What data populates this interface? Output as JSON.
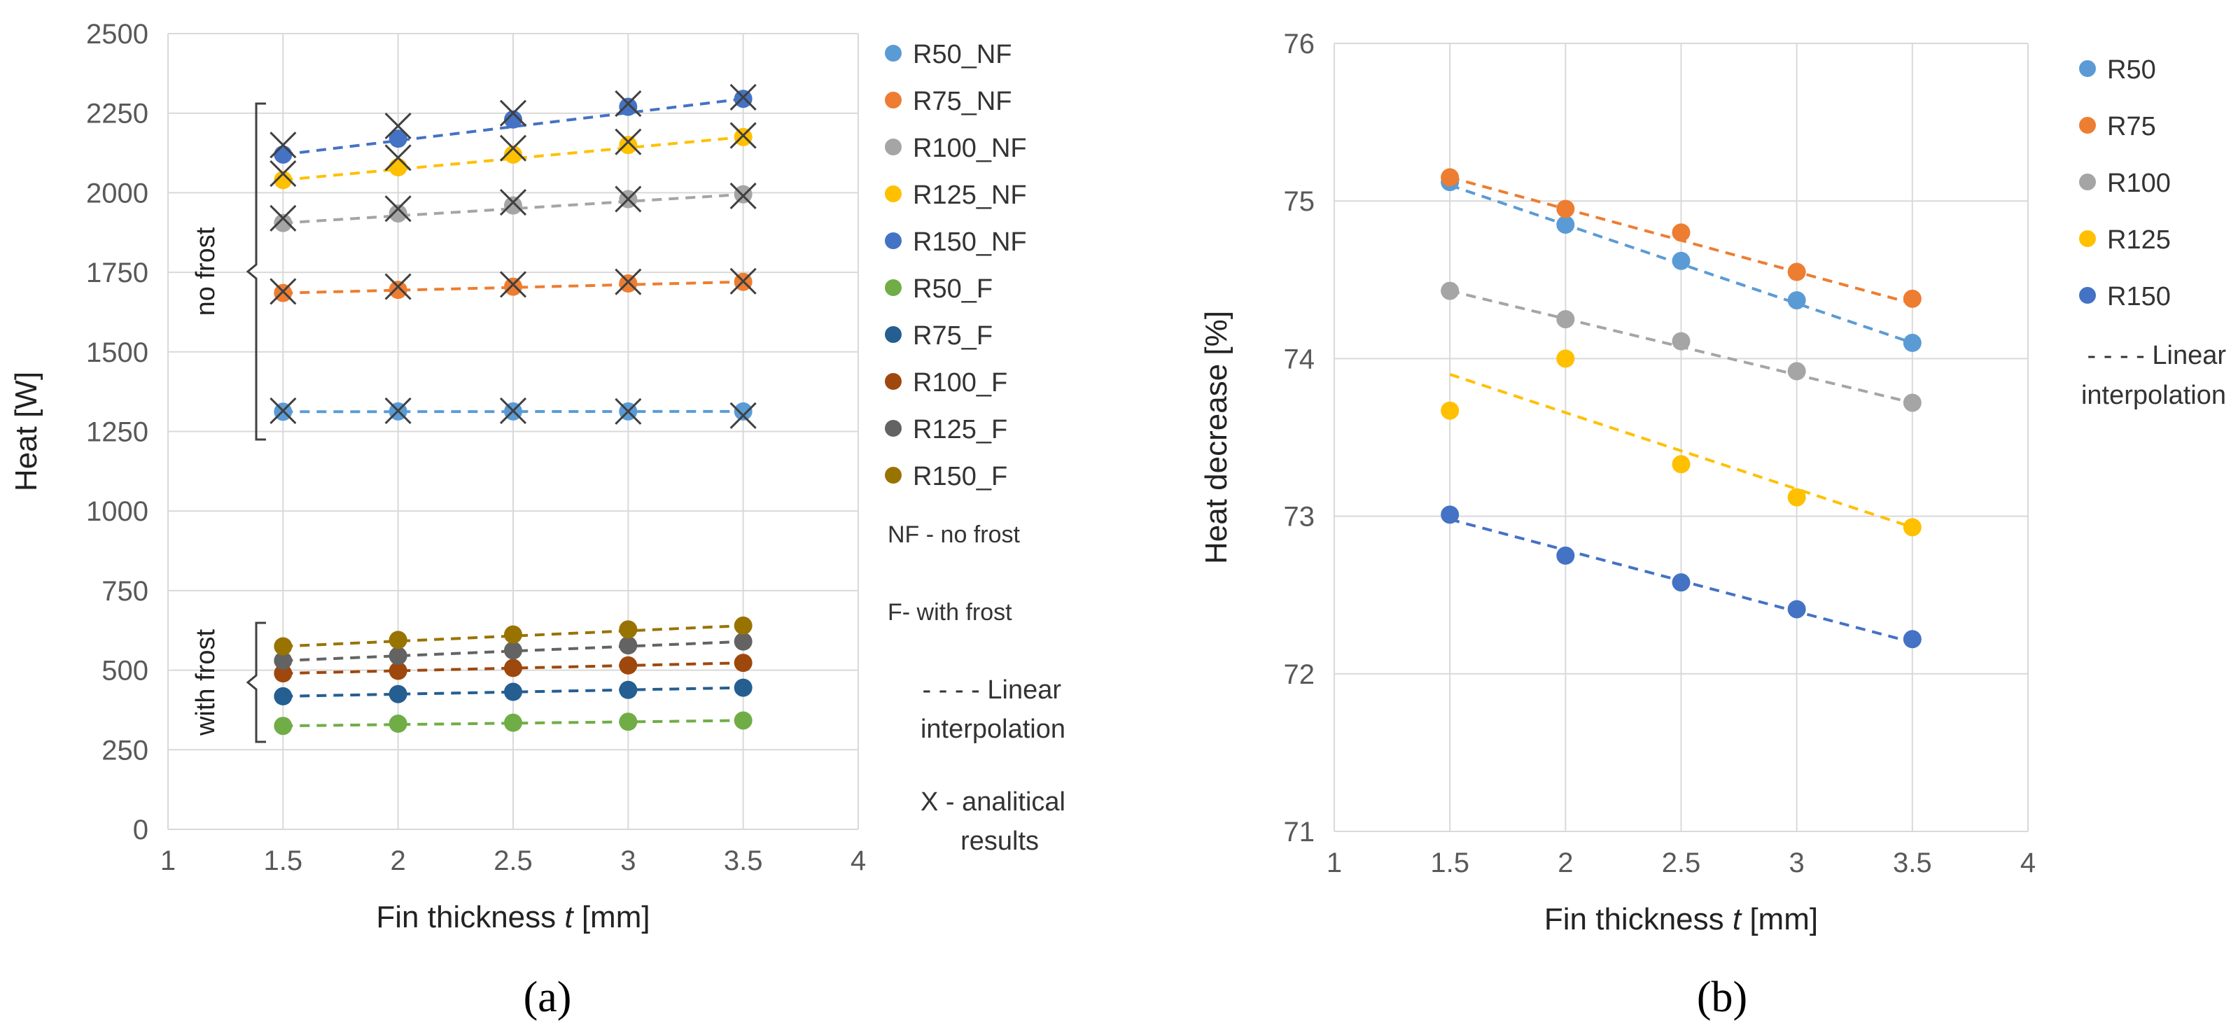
{
  "chart_data": [
    {
      "id": "a",
      "type": "scatter",
      "panel_label": "(a)",
      "xlabel_prefix": "Fin thickness ",
      "xlabel_var": "t",
      "xlabel_suffix": " [mm]",
      "ylabel": "Heat [W]",
      "xlim": [
        1,
        4
      ],
      "ylim": [
        0,
        2500
      ],
      "xticks": [
        1,
        1.5,
        2,
        2.5,
        3,
        3.5,
        4
      ],
      "yticks": [
        0,
        250,
        500,
        750,
        1000,
        1250,
        1500,
        1750,
        2000,
        2250,
        2500
      ],
      "grid": true,
      "legend_position": "right",
      "x": [
        1.5,
        2,
        2.5,
        3,
        3.5
      ],
      "series": [
        {
          "name": "R50_NF",
          "color": "#5b9bd5",
          "values": [
            1312,
            1313,
            1313,
            1313,
            1313
          ]
        },
        {
          "name": "R75_NF",
          "color": "#ed7d31",
          "values": [
            1685,
            1695,
            1705,
            1715,
            1720
          ]
        },
        {
          "name": "R100_NF",
          "color": "#a5a5a5",
          "values": [
            1905,
            1935,
            1960,
            1980,
            1995
          ]
        },
        {
          "name": "R125_NF",
          "color": "#ffc000",
          "values": [
            2040,
            2080,
            2120,
            2150,
            2175
          ]
        },
        {
          "name": "R150_NF",
          "color": "#4472c4",
          "values": [
            2120,
            2170,
            2230,
            2270,
            2295
          ]
        },
        {
          "name": "R50_F",
          "color": "#70ad47",
          "values": [
            325,
            332,
            335,
            338,
            342
          ]
        },
        {
          "name": "R75_F",
          "color": "#255e91",
          "values": [
            418,
            425,
            432,
            438,
            445
          ]
        },
        {
          "name": "R100_F",
          "color": "#9e480e",
          "values": [
            490,
            498,
            507,
            515,
            523
          ]
        },
        {
          "name": "R125_F",
          "color": "#636363",
          "values": [
            530,
            545,
            562,
            578,
            590
          ]
        },
        {
          "name": "R150_F",
          "color": "#997300",
          "values": [
            575,
            595,
            612,
            628,
            640
          ]
        }
      ],
      "analytical_results": [
        {
          "series": "R50_NF",
          "values": [
            1315,
            1315,
            1315,
            1313,
            1300
          ]
        },
        {
          "series": "R75_NF",
          "values": [
            1690,
            1705,
            1712,
            1720,
            1722
          ]
        },
        {
          "series": "R100_NF",
          "values": [
            1920,
            1950,
            1970,
            1980,
            1990
          ]
        },
        {
          "series": "R125_NF",
          "values": [
            2060,
            2110,
            2140,
            2160,
            2180
          ]
        },
        {
          "series": "R150_NF",
          "values": [
            2150,
            2210,
            2250,
            2280,
            2300
          ]
        }
      ],
      "brace_labels": [
        "no frost",
        "with frost"
      ],
      "notes": [
        "NF - no frost",
        "F- with frost"
      ],
      "linear_line1": "- - - - Linear",
      "linear_line2": "interpolation",
      "x_note_line1": "X - analitical",
      "x_note_line2": "results"
    },
    {
      "id": "b",
      "type": "scatter",
      "panel_label": "(b)",
      "xlabel_prefix": "Fin thickness ",
      "xlabel_var": "t",
      "xlabel_suffix": " [mm]",
      "ylabel": "Heat decrease [%]",
      "xlim": [
        1,
        4
      ],
      "ylim": [
        71,
        76
      ],
      "xticks": [
        1,
        1.5,
        2,
        2.5,
        3,
        3.5,
        4
      ],
      "yticks": [
        71,
        72,
        73,
        74,
        75,
        76
      ],
      "grid": true,
      "legend_position": "right",
      "x": [
        1.5,
        2,
        2.5,
        3,
        3.5
      ],
      "series": [
        {
          "name": "R50",
          "color": "#5b9bd5",
          "values": [
            75.12,
            74.85,
            74.62,
            74.37,
            74.1
          ],
          "fit": [
            75.1,
            74.1
          ]
        },
        {
          "name": "R75",
          "color": "#ed7d31",
          "values": [
            75.15,
            74.95,
            74.8,
            74.55,
            74.38
          ],
          "fit": [
            75.15,
            74.35
          ]
        },
        {
          "name": "R100",
          "color": "#a5a5a5",
          "values": [
            74.43,
            74.25,
            74.11,
            73.92,
            73.72
          ],
          "fit": [
            74.43,
            73.72
          ]
        },
        {
          "name": "R125",
          "color": "#ffc000",
          "values": [
            73.67,
            74.0,
            73.33,
            73.12,
            72.93
          ],
          "fit": [
            73.9,
            72.93
          ]
        },
        {
          "name": "R150",
          "color": "#4472c4",
          "values": [
            73.01,
            72.75,
            72.58,
            72.41,
            72.22
          ],
          "fit": [
            72.98,
            72.2
          ]
        }
      ],
      "linear_line1": "- - - - Linear",
      "linear_line2": "interpolation"
    }
  ]
}
